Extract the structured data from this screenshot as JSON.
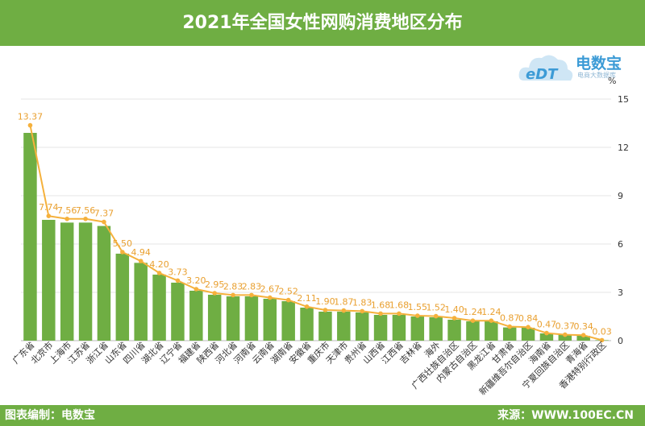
{
  "header": {
    "title": "2021年全国女性网购消费地区分布"
  },
  "footer": {
    "left": "图表编制：电数宝",
    "right": "来源：WWW.100EC.CN"
  },
  "logo": {
    "brand": "电数宝",
    "sub": "电商大数据库",
    "mark": "eDT"
  },
  "colors": {
    "header": "#6fae43",
    "bar": "#6fae43",
    "line": "#f5b13c",
    "label": "#e9a030"
  },
  "chart_data": {
    "type": "bar",
    "title": "2021年全国女性网购消费地区分布",
    "ylabel": "%",
    "ylim": [
      0,
      15
    ],
    "yticks": [
      0,
      3,
      6,
      9,
      12,
      15
    ],
    "grid": true,
    "categories": [
      "广东省",
      "北京市",
      "上海市",
      "江苏省",
      "浙江省",
      "山东省",
      "四川省",
      "湖北省",
      "辽宁省",
      "福建省",
      "陕西省",
      "河北省",
      "河南省",
      "云南省",
      "湖南省",
      "安徽省",
      "重庆市",
      "天津市",
      "贵州省",
      "山西省",
      "江西省",
      "吉林省",
      "海外",
      "广西壮族自治区",
      "内蒙古自治区",
      "黑龙江省",
      "甘肃省",
      "新疆维吾尔自治区",
      "海南省",
      "宁夏回族自治区",
      "青海省",
      "香港特别行政区"
    ],
    "series": [
      {
        "type": "bar",
        "values": [
          12.9,
          7.5,
          7.33,
          7.33,
          7.12,
          5.4,
          4.83,
          4.1,
          3.6,
          3.1,
          2.85,
          2.75,
          2.75,
          2.6,
          2.45,
          2.05,
          1.8,
          1.8,
          1.75,
          1.6,
          1.6,
          1.5,
          1.45,
          1.3,
          1.2,
          1.2,
          0.82,
          0.8,
          0.45,
          0.35,
          0.3,
          0.03
        ]
      },
      {
        "type": "line",
        "values": [
          13.37,
          7.74,
          7.56,
          7.56,
          7.37,
          5.5,
          4.94,
          4.2,
          3.73,
          3.2,
          2.95,
          2.83,
          2.83,
          2.67,
          2.52,
          2.11,
          1.9,
          1.87,
          1.83,
          1.68,
          1.68,
          1.55,
          1.52,
          1.4,
          1.24,
          1.24,
          0.87,
          0.84,
          0.47,
          0.37,
          0.34,
          0.03
        ],
        "labels": [
          "13.37",
          "7.74",
          "7.56",
          "7.56",
          "7.37",
          "5.50",
          "4.94",
          "4.20",
          "3.73",
          "3.20",
          "2.95",
          "2.83",
          "2.83",
          "2.67",
          "2.52",
          "2.11",
          "1.90",
          "1.87",
          "1.83",
          "1.68",
          "1.68",
          "1.55",
          "1.52",
          "1.40",
          "1.24",
          "1.24",
          "0.87",
          "0.84",
          "0.47",
          "0.37",
          "0.34",
          "0.03"
        ]
      }
    ]
  }
}
